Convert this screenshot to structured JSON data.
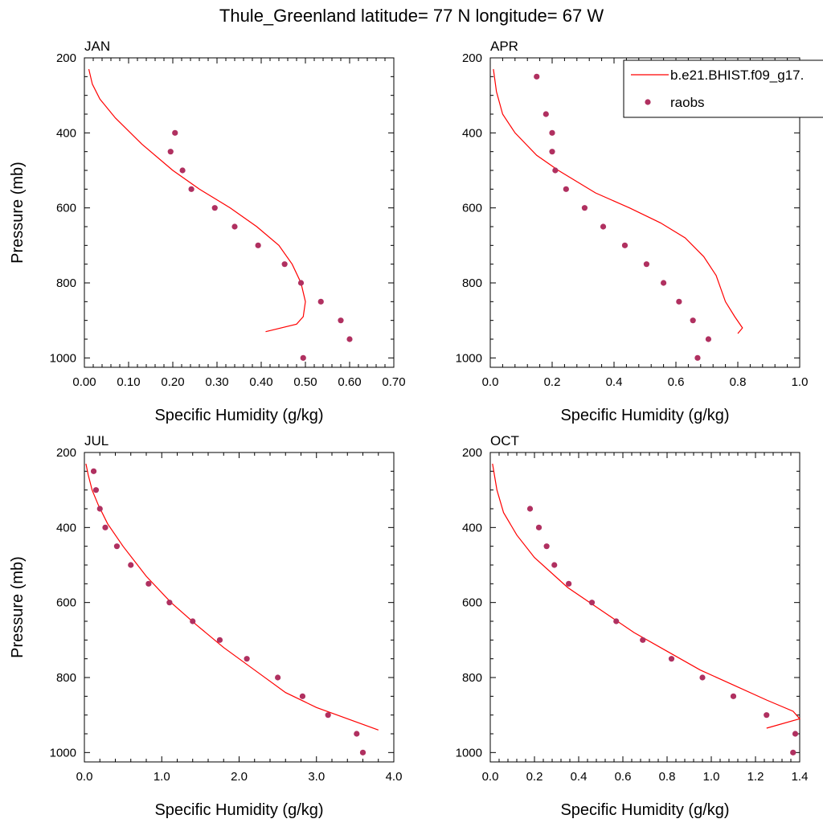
{
  "title": "Thule_Greenland  latitude= 77 N longitude= 67 W",
  "legend": {
    "model_label": "b.e21.BHIST.f09_g17.",
    "obs_label": "raobs"
  },
  "colors": {
    "model_line": "#ff0000",
    "obs_marker": "#b03060",
    "axis": "#000000"
  },
  "chart_data": [
    {
      "type": "line",
      "panel": "JAN",
      "xlabel": "Specific Humidity (g/kg)",
      "ylabel": "Pressure (mb)",
      "xlim": [
        0,
        0.7
      ],
      "ylim": [
        1025,
        200
      ],
      "xticks": [
        0,
        0.1,
        0.2,
        0.3,
        0.4,
        0.5,
        0.6,
        0.7
      ],
      "xtick_labels": [
        "0.00",
        "0.10",
        "0.20",
        "0.30",
        "0.40",
        "0.50",
        "0.60",
        "0.70"
      ],
      "yticks": [
        200,
        400,
        600,
        800,
        1000
      ],
      "ytick_labels": [
        "200",
        "400",
        "600",
        "800",
        "1000"
      ],
      "series": [
        {
          "name": "b.e21.BHIST.f09_g17.",
          "kind": "line",
          "x": [
            0.41,
            0.48,
            0.495,
            0.5,
            0.49,
            0.47,
            0.44,
            0.39,
            0.33,
            0.26,
            0.2,
            0.13,
            0.07,
            0.035,
            0.018,
            0.01
          ],
          "y": [
            930,
            910,
            890,
            850,
            800,
            750,
            700,
            650,
            600,
            550,
            500,
            430,
            360,
            310,
            270,
            230
          ]
        },
        {
          "name": "raobs",
          "kind": "scatter",
          "x": [
            0.205,
            0.195,
            0.222,
            0.242,
            0.295,
            0.34,
            0.393,
            0.453,
            0.49,
            0.535,
            0.58,
            0.6,
            0.495
          ],
          "y": [
            400,
            450,
            500,
            550,
            600,
            650,
            700,
            750,
            800,
            850,
            900,
            950,
            1000
          ]
        }
      ]
    },
    {
      "type": "line",
      "panel": "APR",
      "xlabel": "Specific Humidity (g/kg)",
      "ylabel": "Pressure (mb)",
      "xlim": [
        0,
        1.0
      ],
      "ylim": [
        1025,
        200
      ],
      "xticks": [
        0,
        0.2,
        0.4,
        0.6,
        0.8,
        1.0
      ],
      "xtick_labels": [
        "0.0",
        "0.2",
        "0.4",
        "0.6",
        "0.8",
        "1.0"
      ],
      "yticks": [
        200,
        400,
        600,
        800,
        1000
      ],
      "ytick_labels": [
        "200",
        "400",
        "600",
        "800",
        "1000"
      ],
      "series": [
        {
          "name": "b.e21.BHIST.f09_g17.",
          "kind": "line",
          "x": [
            0.8,
            0.815,
            0.79,
            0.76,
            0.73,
            0.69,
            0.63,
            0.55,
            0.45,
            0.34,
            0.22,
            0.15,
            0.08,
            0.04,
            0.02,
            0.01
          ],
          "y": [
            935,
            920,
            890,
            850,
            780,
            730,
            680,
            640,
            600,
            560,
            500,
            460,
            400,
            350,
            290,
            230
          ]
        },
        {
          "name": "raobs",
          "kind": "scatter",
          "x": [
            0.15,
            0.18,
            0.2,
            0.2,
            0.21,
            0.245,
            0.305,
            0.365,
            0.435,
            0.505,
            0.56,
            0.61,
            0.655,
            0.705,
            0.67
          ],
          "y": [
            250,
            350,
            400,
            450,
            500,
            550,
            600,
            650,
            700,
            750,
            800,
            850,
            900,
            950,
            1000
          ]
        }
      ]
    },
    {
      "type": "line",
      "panel": "JUL",
      "xlabel": "Specific Humidity (g/kg)",
      "ylabel": "Pressure (mb)",
      "xlim": [
        0,
        4.0
      ],
      "ylim": [
        1025,
        200
      ],
      "xticks": [
        0,
        1.0,
        2.0,
        3.0,
        4.0
      ],
      "xtick_labels": [
        "0.0",
        "1.0",
        "2.0",
        "3.0",
        "4.0"
      ],
      "yticks": [
        200,
        400,
        600,
        800,
        1000
      ],
      "ytick_labels": [
        "200",
        "400",
        "600",
        "800",
        "1000"
      ],
      "series": [
        {
          "name": "b.e21.BHIST.f09_g17.",
          "kind": "line",
          "x": [
            3.8,
            3.4,
            3.0,
            2.6,
            2.2,
            1.8,
            1.45,
            1.12,
            0.8,
            0.5,
            0.3,
            0.18,
            0.1,
            0.05,
            0.02
          ],
          "y": [
            940,
            910,
            880,
            840,
            780,
            720,
            660,
            600,
            530,
            450,
            390,
            340,
            300,
            260,
            230
          ]
        },
        {
          "name": "raobs",
          "kind": "scatter",
          "x": [
            0.12,
            0.15,
            0.2,
            0.27,
            0.42,
            0.6,
            0.83,
            1.1,
            1.4,
            1.75,
            2.1,
            2.5,
            2.82,
            3.15,
            3.52,
            3.6
          ],
          "y": [
            250,
            300,
            350,
            400,
            450,
            500,
            550,
            600,
            650,
            700,
            750,
            800,
            850,
            900,
            950,
            1000
          ]
        }
      ]
    },
    {
      "type": "line",
      "panel": "OCT",
      "xlabel": "Specific Humidity (g/kg)",
      "ylabel": "Pressure (mb)",
      "xlim": [
        0,
        1.4
      ],
      "ylim": [
        1025,
        200
      ],
      "xticks": [
        0,
        0.2,
        0.4,
        0.6,
        0.8,
        1.0,
        1.2,
        1.4
      ],
      "xtick_labels": [
        "0.0",
        "0.2",
        "0.4",
        "0.6",
        "0.8",
        "1.0",
        "1.2",
        "1.4"
      ],
      "yticks": [
        200,
        400,
        600,
        800,
        1000
      ],
      "ytick_labels": [
        "200",
        "400",
        "600",
        "800",
        "1000"
      ],
      "series": [
        {
          "name": "b.e21.BHIST.f09_g17.",
          "kind": "line",
          "x": [
            1.25,
            1.4,
            1.37,
            1.25,
            1.1,
            0.95,
            0.8,
            0.65,
            0.5,
            0.35,
            0.2,
            0.12,
            0.06,
            0.03,
            0.01
          ],
          "y": [
            935,
            910,
            890,
            860,
            820,
            780,
            730,
            680,
            620,
            560,
            480,
            420,
            360,
            300,
            230
          ]
        },
        {
          "name": "raobs",
          "kind": "scatter",
          "x": [
            0.18,
            0.22,
            0.255,
            0.29,
            0.355,
            0.46,
            0.57,
            0.69,
            0.82,
            0.96,
            1.1,
            1.25,
            1.38,
            1.37
          ],
          "y": [
            350,
            400,
            450,
            500,
            550,
            600,
            650,
            700,
            750,
            800,
            850,
            900,
            950,
            1000
          ]
        }
      ]
    }
  ]
}
